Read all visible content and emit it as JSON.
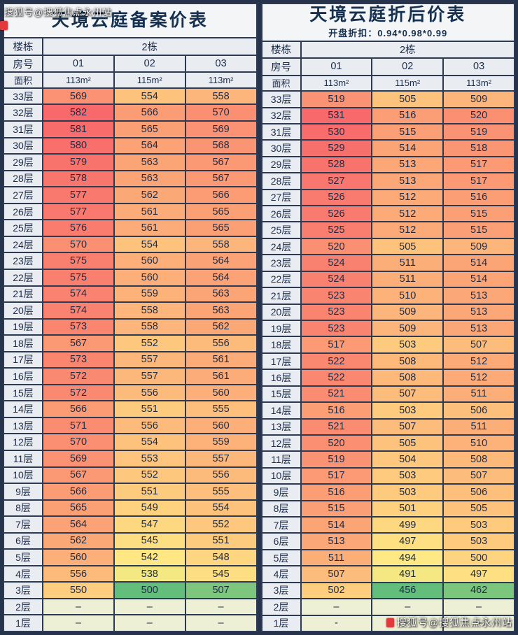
{
  "watermark": {
    "top_left": "搜狐号@搜狐焦点永州站",
    "bottom_right": "搜狐号@搜狐焦点永州站"
  },
  "chart_data": [
    {
      "type": "table",
      "title": "天境云庭备案价表",
      "subtitle": "",
      "building_label": "楼栋",
      "building_value": "2栋",
      "room_label": "房号",
      "rooms": [
        "01",
        "02",
        "03"
      ],
      "area_label": "面积",
      "areas": [
        "113m²",
        "115m²",
        "113m²"
      ],
      "floors": [
        "33层",
        "32层",
        "31层",
        "30层",
        "29层",
        "28层",
        "27层",
        "26层",
        "25层",
        "24层",
        "23层",
        "22层",
        "21层",
        "20层",
        "19层",
        "18层",
        "17层",
        "16层",
        "15层",
        "14层",
        "13层",
        "12层",
        "11层",
        "10层",
        "9层",
        "8层",
        "7层",
        "6层",
        "5层",
        "4层",
        "3层",
        "2层",
        "1层"
      ],
      "rows": [
        [
          569,
          554,
          558
        ],
        [
          582,
          566,
          570
        ],
        [
          581,
          565,
          569
        ],
        [
          580,
          564,
          568
        ],
        [
          579,
          563,
          567
        ],
        [
          578,
          563,
          567
        ],
        [
          577,
          562,
          566
        ],
        [
          577,
          561,
          565
        ],
        [
          576,
          561,
          565
        ],
        [
          570,
          554,
          558
        ],
        [
          575,
          560,
          564
        ],
        [
          575,
          560,
          564
        ],
        [
          574,
          559,
          563
        ],
        [
          574,
          558,
          563
        ],
        [
          573,
          558,
          562
        ],
        [
          567,
          552,
          556
        ],
        [
          573,
          557,
          561
        ],
        [
          572,
          557,
          561
        ],
        [
          572,
          556,
          560
        ],
        [
          566,
          551,
          555
        ],
        [
          571,
          556,
          560
        ],
        [
          570,
          554,
          559
        ],
        [
          569,
          553,
          557
        ],
        [
          567,
          552,
          556
        ],
        [
          566,
          551,
          555
        ],
        [
          565,
          549,
          554
        ],
        [
          564,
          547,
          552
        ],
        [
          562,
          545,
          551
        ],
        [
          560,
          542,
          548
        ],
        [
          556,
          538,
          545
        ],
        [
          550,
          500,
          507
        ],
        [
          "–",
          "–",
          "–"
        ],
        [
          "–",
          "–",
          "–"
        ]
      ],
      "heatmap": {
        "min": 500,
        "mid": 541,
        "max": 582,
        "low_color": "#63be7b",
        "mid_color": "#ffeb84",
        "high_color": "#f8696b",
        "empty_color": "#eef0d6"
      }
    },
    {
      "type": "table",
      "title": "天境云庭折后价表",
      "subtitle": "开盘折扣：0.94*0.98*0.99",
      "building_label": "楼栋",
      "building_value": "2栋",
      "room_label": "房号",
      "rooms": [
        "01",
        "02",
        "03"
      ],
      "area_label": "面积",
      "areas": [
        "113m²",
        "115m²",
        "113m²"
      ],
      "floors": [
        "33层",
        "32层",
        "31层",
        "30层",
        "29层",
        "28层",
        "27层",
        "26层",
        "25层",
        "24层",
        "23层",
        "22层",
        "21层",
        "20层",
        "19层",
        "18层",
        "17层",
        "16层",
        "15层",
        "14层",
        "13层",
        "12层",
        "11层",
        "10层",
        "9层",
        "8层",
        "7层",
        "6层",
        "5层",
        "4层",
        "3层",
        "2层",
        "1层"
      ],
      "rows": [
        [
          519,
          505,
          509
        ],
        [
          531,
          516,
          520
        ],
        [
          530,
          515,
          519
        ],
        [
          529,
          514,
          518
        ],
        [
          528,
          513,
          517
        ],
        [
          527,
          513,
          517
        ],
        [
          526,
          512,
          516
        ],
        [
          526,
          512,
          515
        ],
        [
          525,
          512,
          515
        ],
        [
          520,
          505,
          509
        ],
        [
          524,
          511,
          514
        ],
        [
          524,
          511,
          514
        ],
        [
          523,
          510,
          513
        ],
        [
          523,
          509,
          513
        ],
        [
          523,
          509,
          513
        ],
        [
          517,
          503,
          507
        ],
        [
          522,
          508,
          512
        ],
        [
          522,
          508,
          512
        ],
        [
          521,
          507,
          511
        ],
        [
          516,
          503,
          506
        ],
        [
          521,
          507,
          511
        ],
        [
          520,
          505,
          510
        ],
        [
          519,
          504,
          508
        ],
        [
          517,
          503,
          507
        ],
        [
          516,
          503,
          506
        ],
        [
          515,
          501,
          505
        ],
        [
          514,
          499,
          503
        ],
        [
          513,
          497,
          503
        ],
        [
          511,
          494,
          500
        ],
        [
          507,
          491,
          497
        ],
        [
          502,
          456,
          462
        ],
        [
          "–",
          "–",
          "–"
        ],
        [
          "-",
          "–",
          "–"
        ]
      ],
      "heatmap": {
        "min": 456,
        "mid": 493.5,
        "max": 531,
        "low_color": "#63be7b",
        "mid_color": "#ffeb84",
        "high_color": "#f8696b",
        "empty_color": "#eef0d6"
      }
    }
  ]
}
